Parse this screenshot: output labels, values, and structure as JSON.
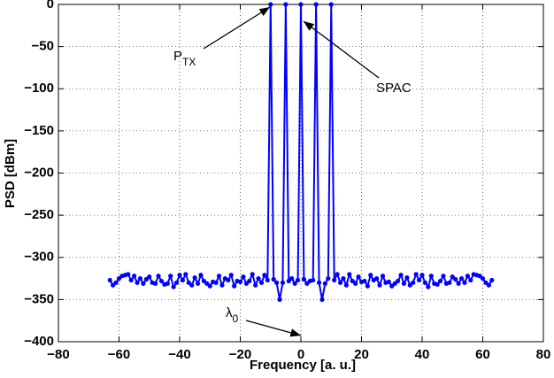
{
  "chart_data": {
    "type": "line",
    "xlabel": "Frequency [a. u.]",
    "ylabel": "PSD [dBm]",
    "x": [
      -63,
      -62,
      -61,
      -60,
      -59,
      -58,
      -57,
      -56,
      -55,
      -54,
      -53,
      -52,
      -51,
      -50,
      -49,
      -48,
      -47,
      -46,
      -45,
      -44,
      -43,
      -42,
      -41,
      -40,
      -39,
      -38,
      -37,
      -36,
      -35,
      -34,
      -33,
      -32,
      -31,
      -30,
      -29,
      -28,
      -27,
      -26,
      -25,
      -24,
      -23,
      -22,
      -21,
      -20,
      -19,
      -18,
      -17,
      -16,
      -15,
      -14,
      -13,
      -12,
      -11,
      -10,
      -9,
      -8,
      -7,
      -6,
      -5,
      -4,
      -3,
      -2,
      -1,
      0,
      1,
      2,
      3,
      4,
      5,
      6,
      7,
      8,
      9,
      10,
      11,
      12,
      13,
      14,
      15,
      16,
      17,
      18,
      19,
      20,
      21,
      22,
      23,
      24,
      25,
      26,
      27,
      28,
      29,
      30,
      31,
      32,
      33,
      34,
      35,
      36,
      37,
      38,
      39,
      40,
      41,
      42,
      43,
      44,
      45,
      46,
      47,
      48,
      49,
      50,
      51,
      52,
      53,
      54,
      55,
      56,
      57,
      58,
      59,
      60,
      61,
      62,
      63
    ],
    "series": [
      {
        "color": "#0000ff",
        "values": [
          -327,
          -333,
          -330,
          -325,
          -322,
          -321,
          -320,
          -327,
          -322,
          -330,
          -325,
          -331,
          -326,
          -323,
          -330,
          -331,
          -322,
          -328,
          -332,
          -331,
          -322,
          -335,
          -330,
          -321,
          -327,
          -320,
          -330,
          -333,
          -324,
          -331,
          -321,
          -328,
          -331,
          -334,
          -329,
          -330,
          -322,
          -333,
          -325,
          -327,
          -321,
          -334,
          -328,
          -329,
          -323,
          -331,
          -328,
          -320,
          -333,
          -325,
          -330,
          -321,
          -327,
          0,
          -326,
          -330,
          -350,
          -330,
          0,
          -328,
          -325,
          -331,
          -327,
          0,
          -326,
          -331,
          -328,
          -327,
          0,
          -330,
          -350,
          -331,
          -325,
          0,
          -327,
          -320,
          -330,
          -325,
          -333,
          -320,
          -328,
          -331,
          -323,
          -329,
          -328,
          -334,
          -321,
          -327,
          -325,
          -333,
          -322,
          -330,
          -329,
          -334,
          -331,
          -328,
          -321,
          -331,
          -324,
          -333,
          -330,
          -320,
          -327,
          -321,
          -330,
          -335,
          -322,
          -331,
          -332,
          -328,
          -322,
          -331,
          -330,
          -323,
          -326,
          -331,
          -325,
          -330,
          -322,
          -327,
          -320,
          -321,
          -322,
          -325,
          -330,
          -333,
          -327
        ]
      }
    ],
    "xlim": [
      -80,
      80
    ],
    "xticks": [
      {
        "value": -80,
        "label": "−80"
      },
      {
        "value": -60,
        "label": "−60"
      },
      {
        "value": -40,
        "label": "−40"
      },
      {
        "value": -20,
        "label": "−20"
      },
      0,
      20,
      40,
      60,
      80
    ],
    "ylim": [
      -400,
      0
    ],
    "yticks": [
      {
        "value": -400,
        "label": "−400"
      },
      {
        "value": -350,
        "label": "−350"
      },
      {
        "value": -300,
        "label": "−300"
      },
      {
        "value": -250,
        "label": "−250"
      },
      {
        "value": -200,
        "label": "−200"
      },
      {
        "value": -150,
        "label": "−150"
      },
      {
        "value": -100,
        "label": "−100"
      },
      {
        "value": -50,
        "label": "−50"
      },
      0
    ],
    "grid": true,
    "annotations": [
      {
        "text": "P",
        "sub": "TX"
      },
      {
        "text": "SPAC"
      },
      {
        "text": "λ",
        "sub": "0"
      }
    ]
  }
}
